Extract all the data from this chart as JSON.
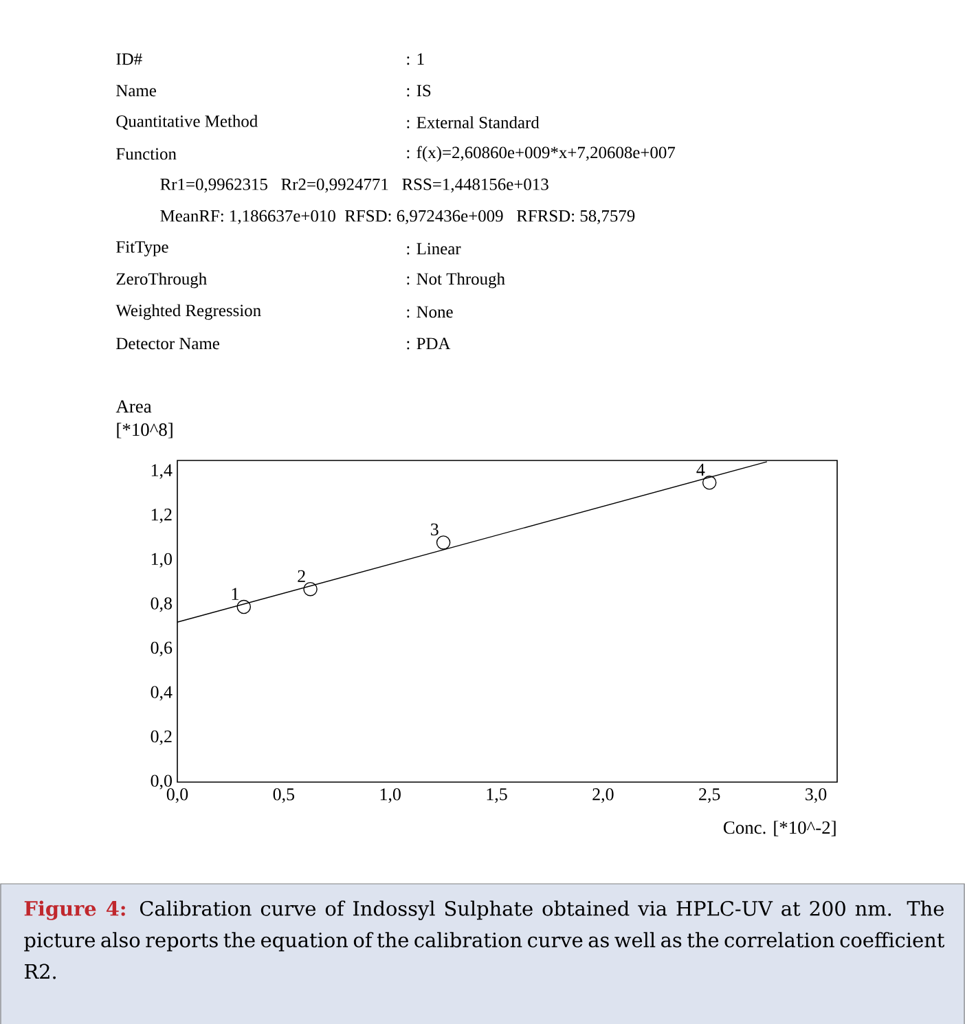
{
  "chart_data": {
    "type": "scatter",
    "xlabel": "Conc. [*10^-2]",
    "ylabel": "Area [*10^8]",
    "xlim": [
      0,
      3.1
    ],
    "ylim": [
      0,
      1.45
    ],
    "xticks": [
      {
        "value": 0,
        "label": "0,0"
      },
      {
        "value": 0.5,
        "label": "0,5"
      },
      {
        "value": 1,
        "label": "1,0"
      },
      {
        "value": 1.5,
        "label": "1,5"
      },
      {
        "value": 2,
        "label": "2,0"
      },
      {
        "value": 2.5,
        "label": "2,5"
      },
      {
        "value": 3,
        "label": "3,0"
      }
    ],
    "yticks": [
      {
        "value": 0,
        "label": "0,0"
      },
      {
        "value": 0.2,
        "label": "0,2"
      },
      {
        "value": 0.4,
        "label": "0,4"
      },
      {
        "value": 0.6,
        "label": "0,6"
      },
      {
        "value": 0.8,
        "label": "0,8"
      },
      {
        "value": 1.0,
        "label": "1,0"
      },
      {
        "value": 1.2,
        "label": "1,2"
      },
      {
        "value": 1.4,
        "label": "1,4"
      }
    ],
    "marker": "circle",
    "line_style": "solid",
    "grid": false,
    "series": [
      {
        "color": "#000000",
        "x": [
          0.3125,
          0.625,
          1.25,
          2.5
        ],
        "values": [
          0.79,
          0.87,
          1.08,
          1.35
        ]
      },
      {
        "type": "line",
        "marker": "none",
        "color": "#000000",
        "x": [
          0,
          2.77
        ],
        "values": [
          0.721,
          1.444
        ]
      }
    ],
    "annotations": [
      "ID#",
      ": 1",
      "Name",
      ": IS",
      "Quantitative Method",
      ": External Standard",
      "Function",
      ": f(x)=2,60860e+009*x+7,20608e+007",
      "Rr1=0,9962315   Rr2=0,9924771   RSS=1,448156e+013",
      "MeanRF: 1,186637e+010  RFSD: 6,972436e+009   RFRSD: 58,7579",
      "FitType",
      ": Linear",
      "ZeroThrough",
      ": Not Through",
      "Weighted Regression",
      ": None",
      "Detector Name",
      ": PDA",
      {
        "text": "1",
        "x": 0.3125,
        "y": 0.79
      },
      {
        "text": "2",
        "x": 0.625,
        "y": 0.87
      },
      {
        "text": "3",
        "x": 1.25,
        "y": 1.08
      },
      {
        "text": "4",
        "x": 2.5,
        "y": 1.35
      },
      "Figure 4:",
      "Calibration curve of Indossyl Sulphate obtained via HPLC-UV at 200 nm. The picture also reports the equation of the calibration curve as well as the correlation coefficient R2."
    ]
  }
}
